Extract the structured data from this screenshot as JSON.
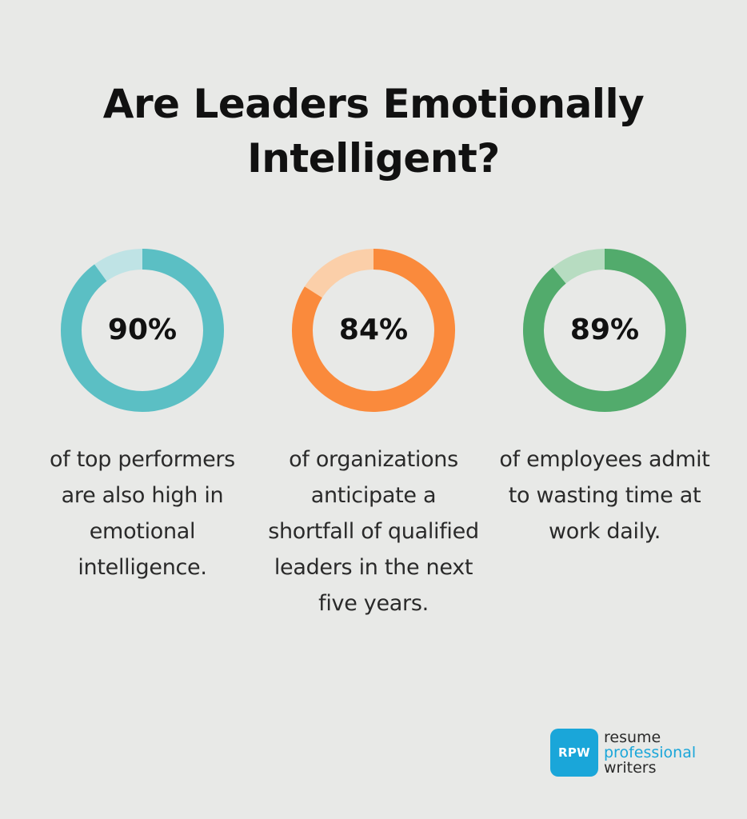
{
  "title": "Are Leaders Emotionally Intelligent?",
  "chart_data": {
    "type": "pie",
    "items": [
      {
        "value": 90,
        "label": "90%",
        "description": "of top performers are also high in emotional intelligence.",
        "color": "#5bbfc4",
        "track_color": "#bfe3e5"
      },
      {
        "value": 84,
        "label": "84%",
        "description": "of organizations anticipate a shortfall of qualified leaders in the next five years.",
        "color": "#fa8a3c",
        "track_color": "#fbcfa9"
      },
      {
        "value": 89,
        "label": "89%",
        "description": "of employees admit to wasting time at work daily.",
        "color": "#52ab6c",
        "track_color": "#b7dcc1"
      }
    ]
  },
  "logo": {
    "badge_text": "RPW",
    "line1": "resume",
    "line2": "professional",
    "line3": "writers",
    "badge_color": "#1aa6d9"
  }
}
